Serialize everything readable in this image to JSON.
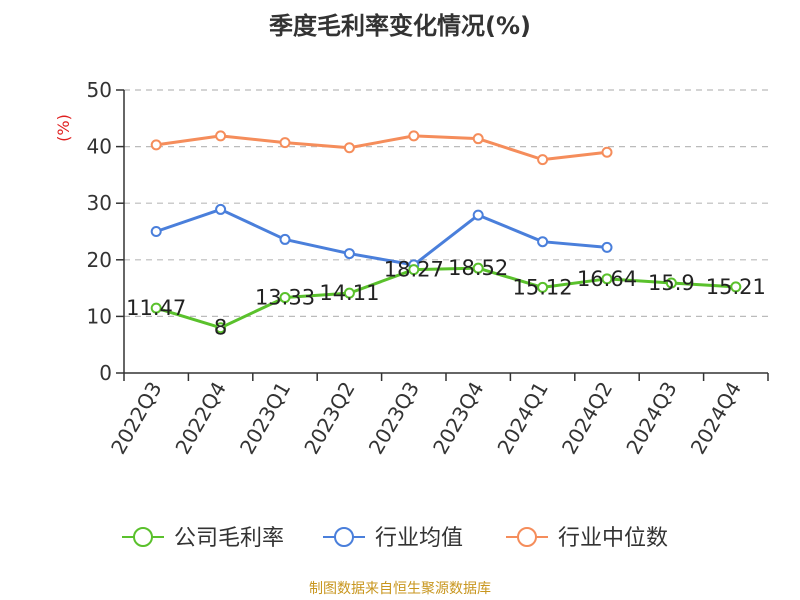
{
  "chart_data": {
    "type": "line",
    "title": "季度毛利率变化情况(%)",
    "ylabel": "(%)",
    "ylim": [
      0,
      50
    ],
    "yticks": [
      0,
      10,
      20,
      30,
      40,
      50
    ],
    "categories": [
      "2022Q3",
      "2022Q4",
      "2023Q1",
      "2023Q2",
      "2023Q3",
      "2023Q4",
      "2024Q1",
      "2024Q2",
      "2024Q3",
      "2024Q4"
    ],
    "grid": true,
    "legend_position": "bottom",
    "series": [
      {
        "name": "公司毛利率",
        "color": "#5ac12c",
        "values": [
          11.47,
          8,
          13.33,
          14.11,
          18.27,
          18.52,
          15.12,
          16.64,
          15.9,
          15.21
        ],
        "labels": [
          "11.47",
          "8",
          "13.33",
          "14.11",
          "18.27",
          "18.52",
          "15.12",
          "16.64",
          "15.9",
          "15.21"
        ]
      },
      {
        "name": "行业均值",
        "color": "#4a7fdb",
        "values": [
          25.0,
          28.9,
          23.6,
          21.1,
          19.1,
          27.9,
          23.2,
          22.2,
          null,
          null
        ]
      },
      {
        "name": "行业中位数",
        "color": "#f58d5b",
        "values": [
          40.3,
          41.9,
          40.7,
          39.8,
          41.9,
          41.4,
          37.7,
          39.0,
          null,
          null
        ]
      }
    ]
  },
  "source": "制图数据来自恒生聚源数据库",
  "colors": {
    "ylabel": "#e02020",
    "source": "#c8961e"
  }
}
